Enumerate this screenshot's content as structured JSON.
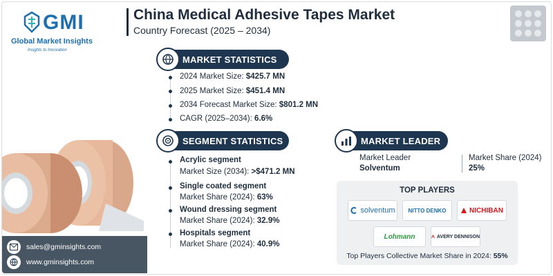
{
  "brand": {
    "name": "Global Market Insights",
    "tagline": "Insights to Innovation",
    "short": "GMI"
  },
  "header": {
    "title": "China Medical Adhesive Tapes Market",
    "subtitle": "Country Forecast (2025 – 2034)"
  },
  "market_statistics": {
    "heading": "MARKET STATISTICS",
    "items": [
      {
        "label": "2024 Market Size: ",
        "value": "$425.7 MN"
      },
      {
        "label": "2025 Market Size: ",
        "value": "$451.4 MN"
      },
      {
        "label": "2034 Forecast Market Size: ",
        "value": "$801.2 MN"
      },
      {
        "label": "CAGR (2025–2034): ",
        "value": "6.6%"
      }
    ]
  },
  "segment_statistics": {
    "heading": "SEGMENT STATISTICS",
    "items": [
      {
        "title": "Acrylic segment",
        "label": "Market Size (2034): ",
        "value": ">$471.2 MN"
      },
      {
        "title": "Single coated segment",
        "label": "Market Share (2024): ",
        "value": "63%"
      },
      {
        "title": "Wound dressing segment",
        "label": "Market Share (2024): ",
        "value": "32.9%"
      },
      {
        "title": "Hospitals segment",
        "label": "Market Share (2024): ",
        "value": "40.9%"
      }
    ]
  },
  "market_leader": {
    "heading": "MARKET LEADER",
    "leader_label": "Market Leader",
    "leader_value": "Solventum",
    "share_label": "Market Share (2024)",
    "share_value": "25%"
  },
  "top_players": {
    "heading": "TOP PLAYERS",
    "logos": [
      "solventum",
      "NITTO DENKO",
      "NICHIBAN",
      "Lohmann",
      "AVERY DENNISON"
    ],
    "footer_label": "Top Players Collective Market Share in 2024: ",
    "footer_value": "55%"
  },
  "contact": {
    "email": "sales@gminsights.com",
    "website": "www.gminsights.com"
  },
  "colors": {
    "navy": "#1e3650",
    "brand_blue": "#1d6fae",
    "nichiban_red": "#d7141a",
    "lohmann_green": "#2e9a3e"
  }
}
